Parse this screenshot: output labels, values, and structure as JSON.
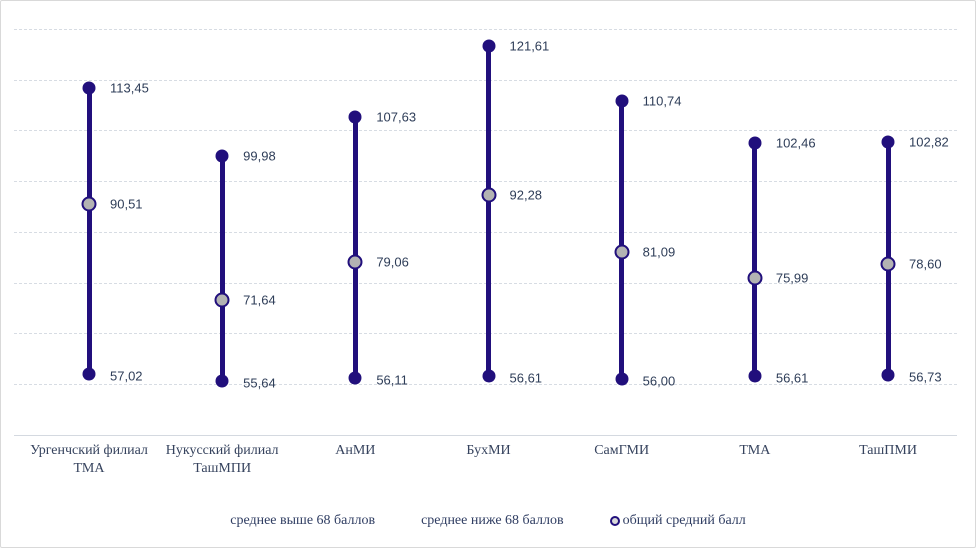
{
  "chart_data": {
    "type": "lollipop-range",
    "title": "",
    "xlabel": "",
    "ylabel": "",
    "grid": "horizontal",
    "ylim": [
      55,
      125
    ],
    "gridline_step": 10,
    "legend_position": "bottom",
    "categories": [
      "Ургенчский филиал ТМА",
      "Нукусский филиал ТашМПИ",
      "АнМИ",
      "БухМИ",
      "СамГМИ",
      "ТМА",
      "ТашПМИ"
    ],
    "series": [
      {
        "name": "среднее выше 68 баллов",
        "values": [
          113.45,
          99.98,
          107.63,
          121.61,
          110.74,
          102.46,
          102.82
        ],
        "labels": [
          "113,45",
          "99,98",
          "107,63",
          "121,61",
          "110,74",
          "102,46",
          "102,82"
        ]
      },
      {
        "name": "среднее ниже 68 баллов",
        "values": [
          57.02,
          55.64,
          56.11,
          56.61,
          56.0,
          56.61,
          56.73
        ],
        "labels": [
          "57,02",
          "55,64",
          "56,11",
          "56,61",
          "56,00",
          "56,61",
          "56,73"
        ]
      },
      {
        "name": "общий средний балл",
        "values": [
          90.51,
          71.64,
          79.06,
          92.28,
          81.09,
          75.99,
          78.6
        ],
        "labels": [
          "90,51",
          "71,64",
          "79,06",
          "92,28",
          "81,09",
          "75,99",
          "78,60"
        ]
      }
    ]
  },
  "colors": {
    "line_navy": "#210f7c",
    "mean_marker_fill": "#b3b3b3",
    "gridline": "#d7dce3",
    "value_text": "#2e3d58",
    "category_text": "#36435e",
    "legend_text": "#2f3d62",
    "background": "#ffffff",
    "frame_border": "#d9d9d9"
  }
}
